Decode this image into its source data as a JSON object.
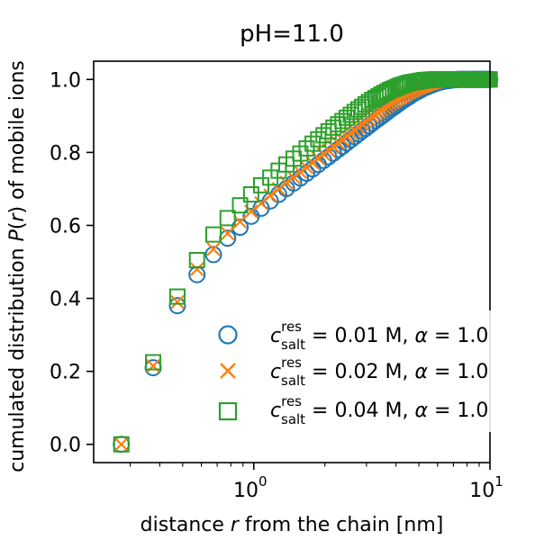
{
  "chart_data": {
    "type": "scatter",
    "title": "pH=11.0",
    "xlabel": {
      "pre": "distance ",
      "var": "r",
      "post": " from the chain [nm]"
    },
    "ylabel": {
      "pre": "cumulated distribution ",
      "var": "P",
      "mid": "(",
      "var2": "r",
      "post": ") of mobile ions"
    },
    "xscale": "log",
    "xlim": [
      0.21,
      10
    ],
    "ylim": [
      -0.05,
      1.05
    ],
    "yticks": [
      "0.0",
      "0.2",
      "0.4",
      "0.6",
      "0.8",
      "1.0"
    ],
    "xticks": [
      {
        "base": "10",
        "exp": "0"
      },
      {
        "base": "10",
        "exp": "1"
      }
    ],
    "grid": false,
    "legend_position": "lower-right",
    "series": [
      {
        "name": {
          "c": "c",
          "sup": "res",
          "sub": "salt",
          "rest": " = 0.01 M, ",
          "alpha": "α",
          "alpha_rest": " = 1.0"
        },
        "marker": "circle",
        "color": "#1f77b4",
        "x": [
          0.275,
          0.375,
          0.475,
          0.575,
          0.675,
          0.775,
          0.875,
          0.975,
          1.075,
          1.175,
          1.275,
          1.375,
          1.475,
          1.575,
          1.675,
          1.775,
          1.875,
          1.975,
          2.075,
          2.175,
          2.275,
          2.375,
          2.475,
          2.575,
          2.675,
          2.775,
          2.875,
          2.975,
          3.075,
          3.175,
          3.275,
          3.375,
          3.475,
          3.575,
          3.675,
          3.775,
          3.875,
          3.975,
          4.075,
          4.175,
          4.275,
          4.375,
          4.475,
          4.575,
          4.675,
          4.775,
          4.875,
          4.975,
          5.075,
          5.175,
          5.275,
          5.375,
          5.475,
          5.575,
          5.675,
          5.775,
          5.875,
          5.975,
          6.075,
          6.175,
          6.275,
          6.375,
          6.475,
          6.575,
          6.675,
          6.775,
          6.875,
          6.975,
          7.075,
          7.175,
          7.275,
          7.375,
          7.475,
          7.575,
          7.675,
          7.775,
          7.875,
          7.975,
          8.075,
          8.175,
          8.275,
          8.375,
          8.475,
          8.575,
          8.675,
          8.775,
          8.875,
          8.975,
          9.075,
          9.175,
          9.275,
          9.375,
          9.475,
          9.575,
          9.675,
          9.775,
          9.875,
          9.975
        ],
        "y": [
          0.0,
          0.21,
          0.38,
          0.465,
          0.52,
          0.565,
          0.595,
          0.625,
          0.647,
          0.667,
          0.685,
          0.701,
          0.716,
          0.73,
          0.743,
          0.755,
          0.767,
          0.778,
          0.788,
          0.798,
          0.808,
          0.817,
          0.826,
          0.835,
          0.843,
          0.851,
          0.859,
          0.866,
          0.873,
          0.88,
          0.887,
          0.893,
          0.899,
          0.905,
          0.911,
          0.917,
          0.922,
          0.927,
          0.932,
          0.937,
          0.942,
          0.946,
          0.95,
          0.954,
          0.958,
          0.962,
          0.965,
          0.968,
          0.971,
          0.974,
          0.977,
          0.979,
          0.981,
          0.983,
          0.985,
          0.987,
          0.989,
          0.99,
          0.992,
          0.993,
          0.994,
          0.995,
          0.996,
          0.997,
          0.997,
          0.998,
          0.998,
          0.999,
          0.999,
          0.999,
          1.0,
          1.0,
          1.0,
          1.0,
          1.0,
          1.0,
          1.0,
          1.0,
          1.0,
          1.0,
          1.0,
          1.0,
          1.0,
          1.0,
          1.0,
          1.0,
          1.0,
          1.0,
          1.0,
          1.0,
          1.0,
          1.0,
          1.0,
          1.0,
          1.0,
          1.0,
          1.0,
          1.0
        ]
      },
      {
        "name": {
          "c": "c",
          "sup": "res",
          "sub": "salt",
          "rest": " = 0.02 M, ",
          "alpha": "α",
          "alpha_rest": " = 1.0"
        },
        "marker": "x",
        "color": "#ff7f0e",
        "x": [
          0.275,
          0.375,
          0.475,
          0.575,
          0.675,
          0.775,
          0.875,
          0.975,
          1.075,
          1.175,
          1.275,
          1.375,
          1.475,
          1.575,
          1.675,
          1.775,
          1.875,
          1.975,
          2.075,
          2.175,
          2.275,
          2.375,
          2.475,
          2.575,
          2.675,
          2.775,
          2.875,
          2.975,
          3.075,
          3.175,
          3.275,
          3.375,
          3.475,
          3.575,
          3.675,
          3.775,
          3.875,
          3.975,
          4.075,
          4.175,
          4.275,
          4.375,
          4.475,
          4.575,
          4.675,
          4.775,
          4.875,
          4.975,
          5.075,
          5.175,
          5.275,
          5.375,
          5.475,
          5.575,
          5.675,
          5.775,
          5.875,
          5.975,
          6.075,
          6.175,
          6.275,
          6.375,
          6.475,
          6.575,
          6.675,
          6.775,
          6.875,
          6.975,
          7.075,
          7.175,
          7.275,
          7.375,
          7.475,
          7.575,
          7.675,
          7.775,
          7.875,
          7.975,
          8.075,
          8.175,
          8.275,
          8.375,
          8.475,
          8.575,
          8.675,
          8.775,
          8.875,
          8.975,
          9.075,
          9.175,
          9.275,
          9.375,
          9.475,
          9.575,
          9.675,
          9.775,
          9.875,
          9.975
        ],
        "y": [
          0.0,
          0.215,
          0.39,
          0.48,
          0.535,
          0.578,
          0.61,
          0.638,
          0.661,
          0.682,
          0.7,
          0.717,
          0.732,
          0.746,
          0.759,
          0.772,
          0.784,
          0.795,
          0.806,
          0.816,
          0.826,
          0.835,
          0.844,
          0.853,
          0.861,
          0.869,
          0.877,
          0.884,
          0.891,
          0.898,
          0.904,
          0.91,
          0.916,
          0.922,
          0.927,
          0.932,
          0.937,
          0.942,
          0.946,
          0.95,
          0.954,
          0.958,
          0.962,
          0.965,
          0.968,
          0.971,
          0.974,
          0.977,
          0.979,
          0.981,
          0.983,
          0.985,
          0.987,
          0.989,
          0.99,
          0.992,
          0.993,
          0.994,
          0.995,
          0.996,
          0.997,
          0.997,
          0.998,
          0.998,
          0.999,
          0.999,
          0.999,
          1.0,
          1.0,
          1.0,
          1.0,
          1.0,
          1.0,
          1.0,
          1.0,
          1.0,
          1.0,
          1.0,
          1.0,
          1.0,
          1.0,
          1.0,
          1.0,
          1.0,
          1.0,
          1.0,
          1.0,
          1.0,
          1.0,
          1.0,
          1.0,
          1.0,
          1.0,
          1.0,
          1.0,
          1.0,
          1.0,
          1.0
        ]
      },
      {
        "name": {
          "c": "c",
          "sup": "res",
          "sub": "salt",
          "rest": " = 0.04 M, ",
          "alpha": "α",
          "alpha_rest": " = 1.0"
        },
        "marker": "square",
        "color": "#2ca02c",
        "x": [
          0.275,
          0.375,
          0.475,
          0.575,
          0.675,
          0.775,
          0.875,
          0.975,
          1.075,
          1.175,
          1.275,
          1.375,
          1.475,
          1.575,
          1.675,
          1.775,
          1.875,
          1.975,
          2.075,
          2.175,
          2.275,
          2.375,
          2.475,
          2.575,
          2.675,
          2.775,
          2.875,
          2.975,
          3.075,
          3.175,
          3.275,
          3.375,
          3.475,
          3.575,
          3.675,
          3.775,
          3.875,
          3.975,
          4.075,
          4.175,
          4.275,
          4.375,
          4.475,
          4.575,
          4.675,
          4.775,
          4.875,
          4.975,
          5.075,
          5.175,
          5.275,
          5.375,
          5.475,
          5.575,
          5.675,
          5.775,
          5.875,
          5.975,
          6.075,
          6.175,
          6.275,
          6.375,
          6.475,
          6.575,
          6.675,
          6.775,
          6.875,
          6.975,
          7.075,
          7.175,
          7.275,
          7.375,
          7.475,
          7.575,
          7.675,
          7.775,
          7.875,
          7.975,
          8.075,
          8.175,
          8.275,
          8.375,
          8.475,
          8.575,
          8.675,
          8.775,
          8.875,
          8.975,
          9.075,
          9.175,
          9.275,
          9.375,
          9.475,
          9.575,
          9.675,
          9.775,
          9.875,
          9.975
        ],
        "y": [
          0.0,
          0.225,
          0.405,
          0.505,
          0.575,
          0.62,
          0.655,
          0.685,
          0.71,
          0.731,
          0.75,
          0.767,
          0.783,
          0.797,
          0.811,
          0.824,
          0.836,
          0.847,
          0.858,
          0.868,
          0.877,
          0.886,
          0.895,
          0.903,
          0.911,
          0.918,
          0.925,
          0.932,
          0.938,
          0.944,
          0.949,
          0.954,
          0.959,
          0.963,
          0.967,
          0.971,
          0.974,
          0.977,
          0.98,
          0.983,
          0.985,
          0.987,
          0.989,
          0.991,
          0.992,
          0.993,
          0.994,
          0.995,
          0.996,
          0.997,
          0.998,
          0.998,
          0.999,
          0.999,
          0.999,
          1.0,
          1.0,
          1.0,
          1.0,
          1.0,
          1.0,
          1.0,
          1.0,
          1.0,
          1.0,
          1.0,
          1.0,
          1.0,
          1.0,
          1.0,
          1.0,
          1.0,
          1.0,
          1.0,
          1.0,
          1.0,
          1.0,
          1.0,
          1.0,
          1.0,
          1.0,
          1.0,
          1.0,
          1.0,
          1.0,
          1.0,
          1.0,
          1.0,
          1.0,
          1.0,
          1.0,
          1.0,
          1.0,
          1.0,
          1.0,
          1.0,
          1.0,
          1.0
        ]
      }
    ]
  }
}
